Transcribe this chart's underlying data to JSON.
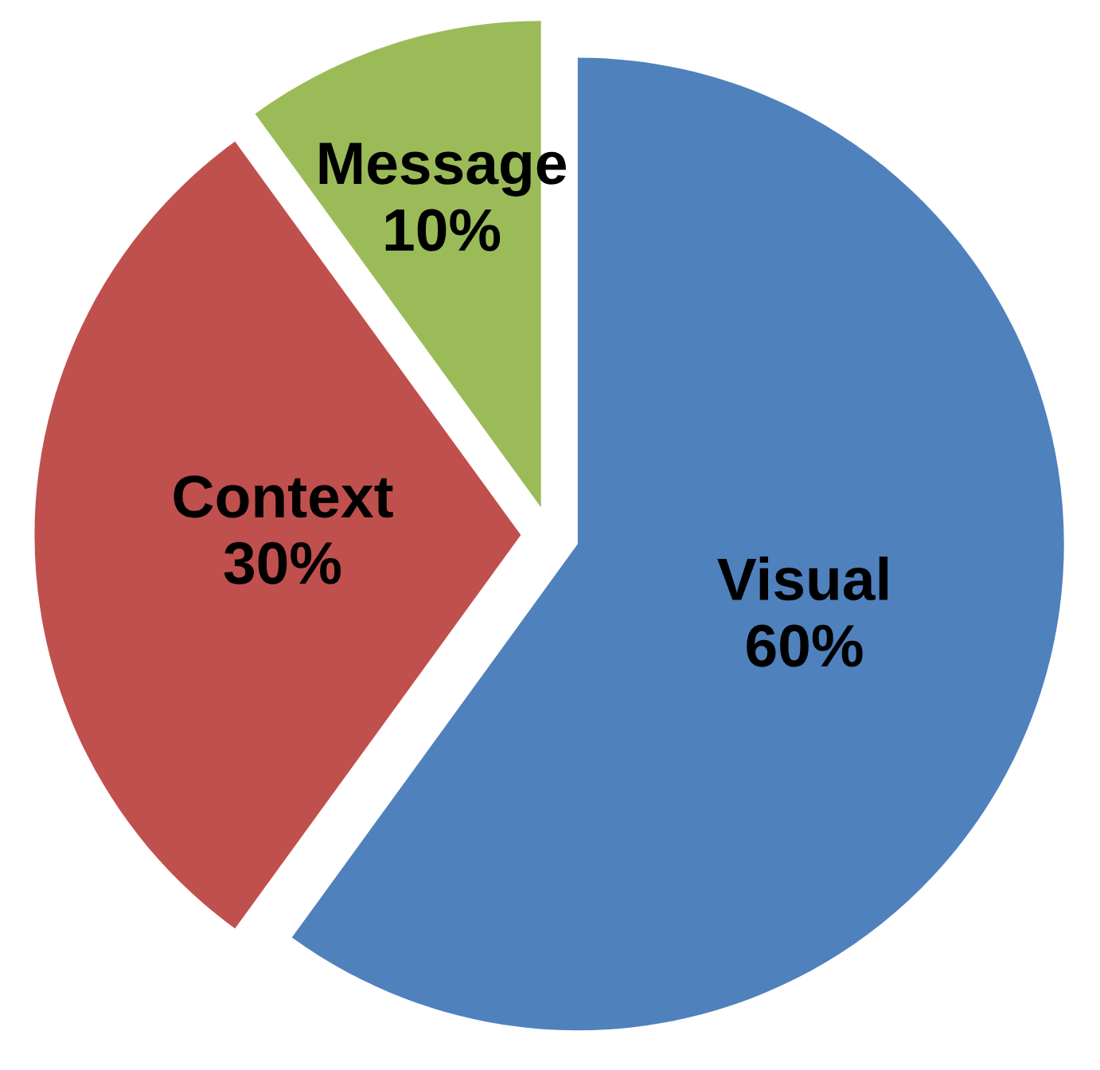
{
  "chart_data": {
    "type": "pie",
    "categories": [
      "Visual",
      "Context",
      "Message"
    ],
    "values": [
      60,
      30,
      10
    ],
    "value_labels": [
      "60%",
      "30%",
      "10%"
    ],
    "colors": [
      "#4f81bd",
      "#c0504d",
      "#9bbb59"
    ],
    "legend": false
  }
}
